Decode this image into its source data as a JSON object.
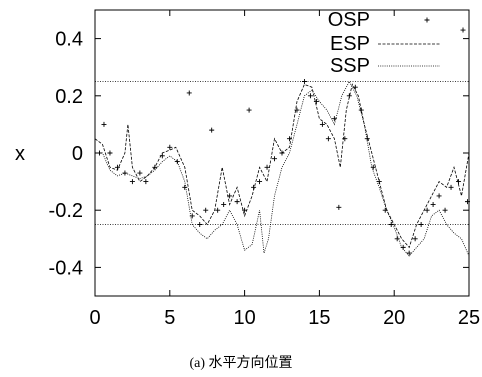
{
  "caption": "(a) 水平方向位置",
  "chart_data": {
    "type": "line",
    "ylabel": "x",
    "xlim": [
      0,
      25
    ],
    "ylim": [
      -0.5,
      0.5
    ],
    "x_ticks": [
      0,
      5,
      10,
      15,
      20,
      25
    ],
    "y_ticks": [
      -0.4,
      -0.2,
      0,
      0.2,
      0.4
    ],
    "x_tick_labels": [
      "0",
      "5",
      "10",
      "15",
      "20",
      "25"
    ],
    "y_tick_labels": [
      "-0.4",
      "-0.2",
      "0",
      "0.2",
      "0.4"
    ],
    "legend_position": "top-right",
    "reference_lines": [
      0.25,
      -0.25
    ],
    "series": [
      {
        "name": "OSP",
        "style": "points",
        "points": [
          [
            0.3,
            0.0
          ],
          [
            0.6,
            0.1
          ],
          [
            1.0,
            0.0
          ],
          [
            1.5,
            -0.05
          ],
          [
            2.0,
            -0.07
          ],
          [
            2.5,
            -0.1
          ],
          [
            3.0,
            -0.07
          ],
          [
            3.4,
            -0.1
          ],
          [
            4.0,
            -0.05
          ],
          [
            4.5,
            -0.01
          ],
          [
            5.0,
            0.02
          ],
          [
            5.5,
            -0.03
          ],
          [
            6.0,
            -0.12
          ],
          [
            6.3,
            0.21
          ],
          [
            6.5,
            -0.22
          ],
          [
            7.0,
            -0.25
          ],
          [
            7.4,
            -0.2
          ],
          [
            7.8,
            0.08
          ],
          [
            8.2,
            -0.2
          ],
          [
            8.6,
            -0.18
          ],
          [
            9.0,
            -0.15
          ],
          [
            9.5,
            -0.17
          ],
          [
            10.0,
            -0.2
          ],
          [
            10.3,
            0.15
          ],
          [
            10.6,
            -0.12
          ],
          [
            11.0,
            -0.1
          ],
          [
            11.5,
            -0.05
          ],
          [
            12.0,
            -0.02
          ],
          [
            12.5,
            0.0
          ],
          [
            13.0,
            0.05
          ],
          [
            13.5,
            0.15
          ],
          [
            14.0,
            0.25
          ],
          [
            14.4,
            0.2
          ],
          [
            14.8,
            0.18
          ],
          [
            15.2,
            0.1
          ],
          [
            15.6,
            0.05
          ],
          [
            16.0,
            0.12
          ],
          [
            16.3,
            -0.19
          ],
          [
            16.7,
            0.05
          ],
          [
            17.0,
            0.2
          ],
          [
            17.4,
            0.23
          ],
          [
            17.8,
            0.15
          ],
          [
            18.2,
            0.05
          ],
          [
            18.6,
            -0.05
          ],
          [
            19.0,
            -0.1
          ],
          [
            19.4,
            -0.2
          ],
          [
            19.8,
            -0.25
          ],
          [
            20.2,
            -0.3
          ],
          [
            20.6,
            -0.33
          ],
          [
            21.0,
            -0.35
          ],
          [
            21.4,
            -0.3
          ],
          [
            21.8,
            -0.25
          ],
          [
            22.2,
            -0.2
          ],
          [
            22.6,
            -0.18
          ],
          [
            23.0,
            -0.15
          ],
          [
            23.4,
            -0.2
          ],
          [
            23.8,
            -0.12
          ],
          [
            24.3,
            -0.1
          ],
          [
            24.6,
            0.43
          ],
          [
            24.9,
            -0.17
          ]
        ]
      },
      {
        "name": "ESP",
        "style": "dashed",
        "points": [
          [
            0.0,
            0.05
          ],
          [
            0.5,
            0.03
          ],
          [
            1.0,
            -0.05
          ],
          [
            1.5,
            -0.06
          ],
          [
            2.0,
            0.0
          ],
          [
            2.2,
            0.1
          ],
          [
            2.5,
            -0.05
          ],
          [
            3.0,
            -0.1
          ],
          [
            3.5,
            -0.08
          ],
          [
            4.0,
            -0.05
          ],
          [
            4.5,
            0.0
          ],
          [
            5.0,
            0.01
          ],
          [
            5.4,
            0.02
          ],
          [
            6.0,
            -0.05
          ],
          [
            6.5,
            -0.2
          ],
          [
            7.0,
            -0.22
          ],
          [
            7.5,
            -0.25
          ],
          [
            8.0,
            -0.2
          ],
          [
            8.5,
            -0.05
          ],
          [
            9.0,
            -0.18
          ],
          [
            9.5,
            -0.12
          ],
          [
            10.0,
            -0.22
          ],
          [
            10.5,
            -0.15
          ],
          [
            11.0,
            -0.05
          ],
          [
            11.5,
            -0.1
          ],
          [
            12.0,
            0.05
          ],
          [
            12.5,
            0.0
          ],
          [
            13.0,
            0.02
          ],
          [
            13.5,
            0.18
          ],
          [
            14.0,
            0.24
          ],
          [
            14.5,
            0.23
          ],
          [
            15.0,
            0.12
          ],
          [
            15.5,
            0.1
          ],
          [
            16.0,
            0.05
          ],
          [
            16.4,
            -0.05
          ],
          [
            16.8,
            0.15
          ],
          [
            17.2,
            0.24
          ],
          [
            17.6,
            0.2
          ],
          [
            18.0,
            0.1
          ],
          [
            18.5,
            0.0
          ],
          [
            19.0,
            -0.1
          ],
          [
            19.5,
            -0.2
          ],
          [
            20.0,
            -0.25
          ],
          [
            20.5,
            -0.3
          ],
          [
            21.0,
            -0.33
          ],
          [
            21.5,
            -0.25
          ],
          [
            22.0,
            -0.2
          ],
          [
            22.5,
            -0.15
          ],
          [
            23.0,
            -0.1
          ],
          [
            23.5,
            -0.12
          ],
          [
            24.0,
            -0.05
          ],
          [
            24.5,
            -0.15
          ],
          [
            25.0,
            0.0
          ]
        ]
      },
      {
        "name": "SSP",
        "style": "dotted",
        "points": [
          [
            0.0,
            0.0
          ],
          [
            0.5,
            0.0
          ],
          [
            1.0,
            -0.06
          ],
          [
            1.5,
            -0.08
          ],
          [
            2.0,
            -0.07
          ],
          [
            2.5,
            -0.08
          ],
          [
            3.0,
            -0.09
          ],
          [
            3.5,
            -0.08
          ],
          [
            4.0,
            -0.06
          ],
          [
            4.5,
            -0.03
          ],
          [
            5.0,
            -0.01
          ],
          [
            5.5,
            -0.03
          ],
          [
            6.0,
            -0.1
          ],
          [
            6.5,
            -0.25
          ],
          [
            7.0,
            -0.28
          ],
          [
            7.5,
            -0.3
          ],
          [
            8.0,
            -0.27
          ],
          [
            8.5,
            -0.25
          ],
          [
            9.0,
            -0.2
          ],
          [
            9.5,
            -0.25
          ],
          [
            10.0,
            -0.34
          ],
          [
            10.5,
            -0.32
          ],
          [
            11.0,
            -0.2
          ],
          [
            11.3,
            -0.35
          ],
          [
            11.6,
            -0.3
          ],
          [
            12.0,
            -0.15
          ],
          [
            12.5,
            -0.05
          ],
          [
            13.0,
            0.0
          ],
          [
            13.5,
            0.1
          ],
          [
            14.0,
            0.2
          ],
          [
            14.5,
            0.22
          ],
          [
            15.0,
            0.18
          ],
          [
            15.5,
            0.15
          ],
          [
            16.0,
            0.1
          ],
          [
            16.5,
            0.2
          ],
          [
            17.0,
            0.25
          ],
          [
            17.5,
            0.2
          ],
          [
            18.0,
            0.1
          ],
          [
            18.5,
            -0.05
          ],
          [
            19.0,
            -0.12
          ],
          [
            19.5,
            -0.2
          ],
          [
            20.0,
            -0.26
          ],
          [
            20.5,
            -0.33
          ],
          [
            21.0,
            -0.36
          ],
          [
            21.5,
            -0.33
          ],
          [
            22.0,
            -0.3
          ],
          [
            22.5,
            -0.22
          ],
          [
            23.0,
            -0.2
          ],
          [
            23.5,
            -0.25
          ],
          [
            24.0,
            -0.28
          ],
          [
            24.5,
            -0.3
          ],
          [
            25.0,
            -0.36
          ]
        ]
      }
    ]
  }
}
